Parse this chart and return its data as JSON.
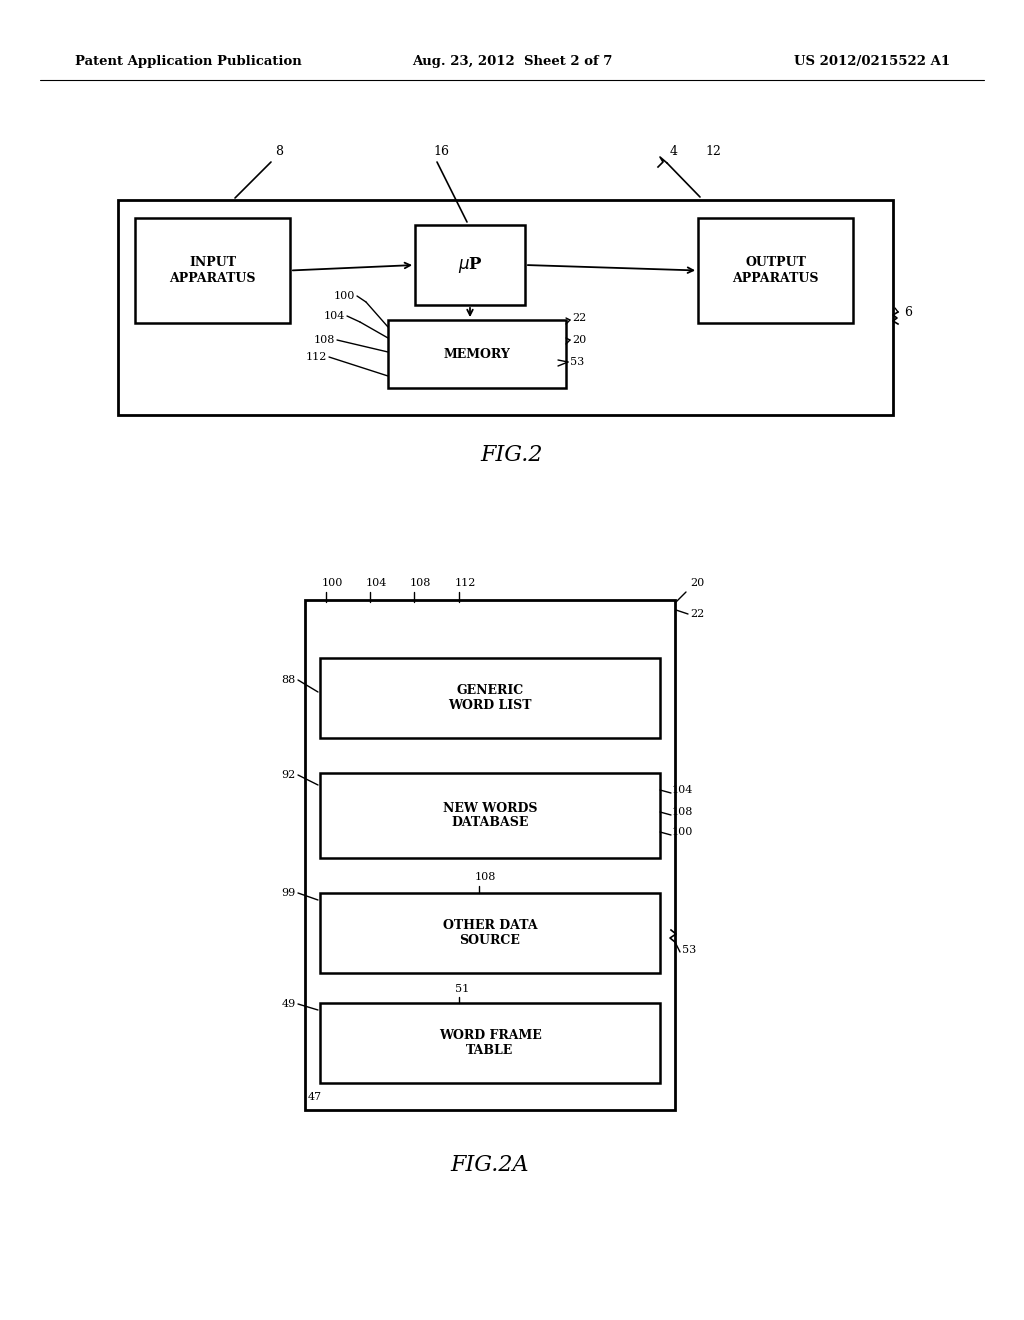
{
  "bg_color": "#ffffff",
  "header_left": "Patent Application Publication",
  "header_center": "Aug. 23, 2012  Sheet 2 of 7",
  "header_right": "US 2012/0215522 A1",
  "fig2_caption": "FIG.2",
  "fig2a_caption": "FIG.2A"
}
